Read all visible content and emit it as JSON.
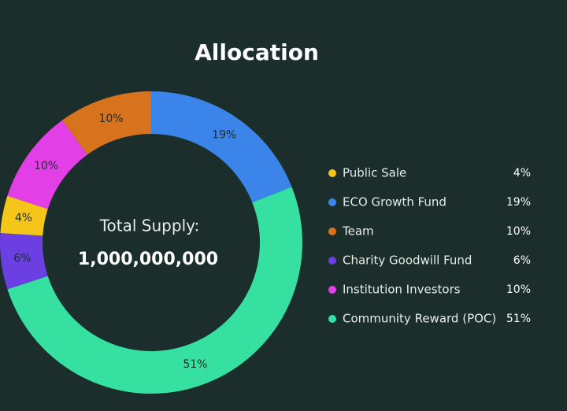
{
  "chart_data": {
    "type": "donut",
    "title": "Allocation",
    "center_label": "Total Supply:",
    "center_value": "1,000,000,000",
    "categories": [
      "Public Sale",
      "ECO Growth Fund",
      "Team",
      "Charity Goodwill Fund",
      "Institution Investors",
      "Community Reward (POC)"
    ],
    "values": [
      4,
      19,
      10,
      6,
      10,
      51
    ],
    "value_labels": [
      "4%",
      "19%",
      "10%",
      "6%",
      "10%",
      "51%"
    ],
    "colors": [
      "#f6c519",
      "#3b84ea",
      "#d8731d",
      "#6b3fe2",
      "#e23fe6",
      "#35e0a1"
    ]
  }
}
